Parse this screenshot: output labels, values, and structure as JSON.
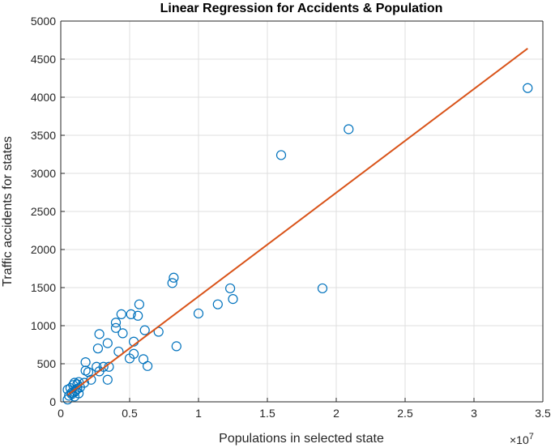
{
  "chart_data": {
    "type": "scatter",
    "title": "Linear Regression for Accidents & Population",
    "xlabel": "Populations in selected state",
    "ylabel": "Traffic accidents for states",
    "x_scale_base": "×10",
    "x_scale_exponent": "7",
    "xlim": [
      0,
      3.5
    ],
    "ylim": [
      0,
      5000
    ],
    "x_ticks": [
      0,
      0.5,
      1,
      1.5,
      2,
      2.5,
      3,
      3.5
    ],
    "x_tick_labels": [
      "0",
      "0.5",
      "1",
      "1.5",
      "2",
      "2.5",
      "3",
      "3.5"
    ],
    "y_ticks": [
      0,
      500,
      1000,
      1500,
      2000,
      2500,
      3000,
      3500,
      4000,
      4500,
      5000
    ],
    "y_tick_labels": [
      "0",
      "500",
      "1000",
      "1500",
      "2000",
      "2500",
      "3000",
      "3500",
      "4000",
      "4500",
      "5000"
    ],
    "grid": true,
    "colors": {
      "points": "#0072BD",
      "fit_line": "#D95319",
      "grid": "#dfdfdf",
      "axes": "#262626"
    },
    "series": [
      {
        "kind": "points",
        "x": [
          0.05,
          0.05,
          0.06,
          0.07,
          0.08,
          0.09,
          0.1,
          0.11,
          0.12,
          0.13,
          0.14,
          0.08,
          0.1,
          0.12,
          0.13,
          0.1,
          0.17,
          0.18,
          0.18,
          0.2,
          0.22,
          0.26,
          0.27,
          0.28,
          0.28,
          0.31,
          0.34,
          0.34,
          0.35,
          0.4,
          0.4,
          0.42,
          0.44,
          0.45,
          0.5,
          0.51,
          0.53,
          0.53,
          0.56,
          0.57,
          0.6,
          0.61,
          0.63,
          0.71,
          0.81,
          0.82,
          0.84,
          1.0,
          1.14,
          1.23,
          1.25,
          1.6,
          1.9,
          2.09,
          3.39
        ],
        "y": [
          30,
          160,
          80,
          180,
          120,
          220,
          70,
          150,
          230,
          110,
          190,
          100,
          130,
          170,
          260,
          250,
          250,
          410,
          520,
          390,
          290,
          460,
          700,
          890,
          400,
          460,
          290,
          770,
          460,
          970,
          1040,
          660,
          1150,
          900,
          570,
          1150,
          630,
          790,
          1130,
          1280,
          560,
          940,
          470,
          920,
          1560,
          1630,
          730,
          1160,
          1280,
          1490,
          1350,
          3240,
          1490,
          3580,
          4120
        ]
      },
      {
        "kind": "fit-line",
        "x": [
          0.05,
          3.39
        ],
        "y": [
          90,
          4640
        ]
      }
    ]
  }
}
